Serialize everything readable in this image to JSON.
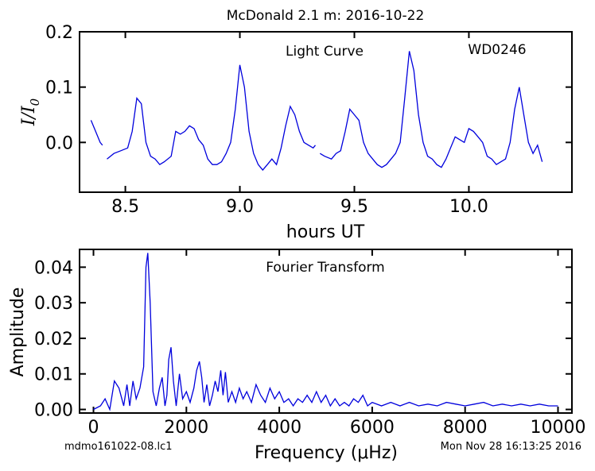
{
  "figure": {
    "title": "McDonald 2.1 m:  2016-10-22",
    "footer_left": "mdmo161022-08.lc1",
    "footer_right": "Mon Nov 28 16:13:25 2016"
  },
  "colors": {
    "line": "#0000dd",
    "axes": "#000000",
    "background": "#ffffff"
  },
  "chart_data": [
    {
      "type": "line",
      "annotations": [
        "Light Curve",
        "WD0246"
      ],
      "xlabel": "hours UT",
      "ylabel": "I/I0",
      "xlim": [
        8.3,
        10.45
      ],
      "ylim": [
        -0.09,
        0.2
      ],
      "xticks": [
        8.5,
        9.0,
        9.5,
        10.0
      ],
      "xtick_labels": [
        "8.5",
        "9.0",
        "9.5",
        "10.0"
      ],
      "yticks": [
        0.0,
        0.1,
        0.2
      ],
      "ytick_labels": [
        "0.0",
        "0.1",
        "0.2"
      ],
      "grid": false,
      "segments": [
        {
          "x": [
            8.35,
            8.37,
            8.39,
            8.4
          ],
          "y": [
            0.04,
            0.02,
            0.0,
            -0.005
          ]
        },
        {
          "x": [
            8.42,
            8.45,
            8.48,
            8.51,
            8.53,
            8.55,
            8.57,
            8.59,
            8.61,
            8.63,
            8.65,
            8.67,
            8.7,
            8.72,
            8.74,
            8.76,
            8.78,
            8.8,
            8.82,
            8.84,
            8.86,
            8.88,
            8.9,
            8.92,
            8.94,
            8.96,
            8.98,
            9.0,
            9.02,
            9.04,
            9.06,
            9.08,
            9.1,
            9.12,
            9.14,
            9.16,
            9.18,
            9.2,
            9.22,
            9.24,
            9.26,
            9.28,
            9.3,
            9.32,
            9.33
          ],
          "y": [
            -0.03,
            -0.02,
            -0.015,
            -0.01,
            0.02,
            0.08,
            0.07,
            0.0,
            -0.025,
            -0.03,
            -0.04,
            -0.035,
            -0.025,
            0.02,
            0.015,
            0.02,
            0.03,
            0.025,
            0.005,
            -0.005,
            -0.03,
            -0.04,
            -0.04,
            -0.035,
            -0.02,
            0.0,
            0.06,
            0.14,
            0.1,
            0.02,
            -0.02,
            -0.04,
            -0.05,
            -0.04,
            -0.03,
            -0.04,
            -0.01,
            0.03,
            0.065,
            0.05,
            0.02,
            0.0,
            -0.005,
            -0.01,
            -0.005
          ]
        },
        {
          "x": [
            9.35,
            9.37,
            9.4,
            9.42,
            9.44,
            9.46,
            9.48,
            9.5,
            9.52,
            9.54,
            9.56,
            9.58,
            9.6,
            9.62,
            9.64,
            9.66,
            9.68,
            9.7,
            9.72,
            9.74,
            9.76,
            9.78,
            9.8,
            9.82,
            9.84,
            9.86,
            9.88,
            9.9,
            9.92,
            9.94,
            9.96,
            9.98,
            10.0,
            10.02,
            10.04,
            10.06,
            10.08,
            10.1,
            10.12,
            10.14,
            10.16,
            10.18,
            10.2,
            10.22,
            10.24,
            10.26,
            10.28,
            10.3,
            10.32
          ],
          "y": [
            -0.02,
            -0.025,
            -0.03,
            -0.02,
            -0.015,
            0.02,
            0.06,
            0.05,
            0.04,
            0.0,
            -0.02,
            -0.03,
            -0.04,
            -0.045,
            -0.04,
            -0.03,
            -0.02,
            0.0,
            0.08,
            0.165,
            0.13,
            0.05,
            0.0,
            -0.025,
            -0.03,
            -0.04,
            -0.045,
            -0.03,
            -0.01,
            0.01,
            0.005,
            0.0,
            0.025,
            0.02,
            0.01,
            0.0,
            -0.025,
            -0.03,
            -0.04,
            -0.035,
            -0.03,
            0.0,
            0.06,
            0.1,
            0.05,
            0.0,
            -0.02,
            -0.005,
            -0.035
          ]
        }
      ]
    },
    {
      "type": "line",
      "annotations": [
        "Fourier Transform"
      ],
      "xlabel": "Frequency (μHz)",
      "ylabel": "Amplitude",
      "xlim": [
        -300,
        10300
      ],
      "ylim": [
        -0.001,
        0.045
      ],
      "xticks": [
        0,
        2000,
        4000,
        6000,
        8000,
        10000
      ],
      "xtick_labels": [
        "0",
        "2000",
        "4000",
        "6000",
        "8000",
        "10000"
      ],
      "yticks": [
        0.0,
        0.01,
        0.02,
        0.03,
        0.04
      ],
      "ytick_labels": [
        "0.00",
        "0.01",
        "0.02",
        "0.03",
        "0.04"
      ],
      "grid": false,
      "x": [
        0,
        150,
        250,
        350,
        450,
        550,
        650,
        720,
        780,
        850,
        920,
        1000,
        1080,
        1130,
        1170,
        1220,
        1280,
        1350,
        1420,
        1480,
        1540,
        1580,
        1620,
        1670,
        1720,
        1780,
        1850,
        1920,
        2000,
        2080,
        2160,
        2220,
        2280,
        2330,
        2380,
        2440,
        2500,
        2560,
        2620,
        2680,
        2740,
        2790,
        2840,
        2900,
        2980,
        3060,
        3140,
        3220,
        3300,
        3400,
        3500,
        3600,
        3700,
        3800,
        3900,
        4000,
        4100,
        4200,
        4300,
        4400,
        4500,
        4600,
        4700,
        4800,
        4900,
        5000,
        5100,
        5200,
        5300,
        5400,
        5500,
        5600,
        5700,
        5800,
        5900,
        6000,
        6200,
        6400,
        6600,
        6800,
        7000,
        7200,
        7400,
        7600,
        7800,
        8000,
        8200,
        8400,
        8600,
        8800,
        9000,
        9200,
        9400,
        9600,
        9800,
        10000
      ],
      "y": [
        0.0,
        0.001,
        0.003,
        0.0,
        0.008,
        0.006,
        0.001,
        0.007,
        0.001,
        0.008,
        0.003,
        0.006,
        0.012,
        0.04,
        0.044,
        0.03,
        0.005,
        0.001,
        0.006,
        0.009,
        0.001,
        0.004,
        0.014,
        0.0175,
        0.008,
        0.001,
        0.01,
        0.003,
        0.005,
        0.002,
        0.006,
        0.011,
        0.0135,
        0.009,
        0.002,
        0.007,
        0.001,
        0.004,
        0.008,
        0.005,
        0.011,
        0.004,
        0.0105,
        0.002,
        0.005,
        0.002,
        0.006,
        0.003,
        0.005,
        0.002,
        0.007,
        0.004,
        0.002,
        0.006,
        0.003,
        0.005,
        0.002,
        0.003,
        0.001,
        0.003,
        0.002,
        0.004,
        0.002,
        0.005,
        0.002,
        0.004,
        0.001,
        0.003,
        0.001,
        0.002,
        0.001,
        0.003,
        0.002,
        0.004,
        0.001,
        0.002,
        0.001,
        0.002,
        0.001,
        0.002,
        0.001,
        0.0015,
        0.001,
        0.002,
        0.0015,
        0.001,
        0.0015,
        0.002,
        0.001,
        0.0015,
        0.001,
        0.0015,
        0.001,
        0.0015,
        0.001,
        0.001
      ]
    }
  ]
}
